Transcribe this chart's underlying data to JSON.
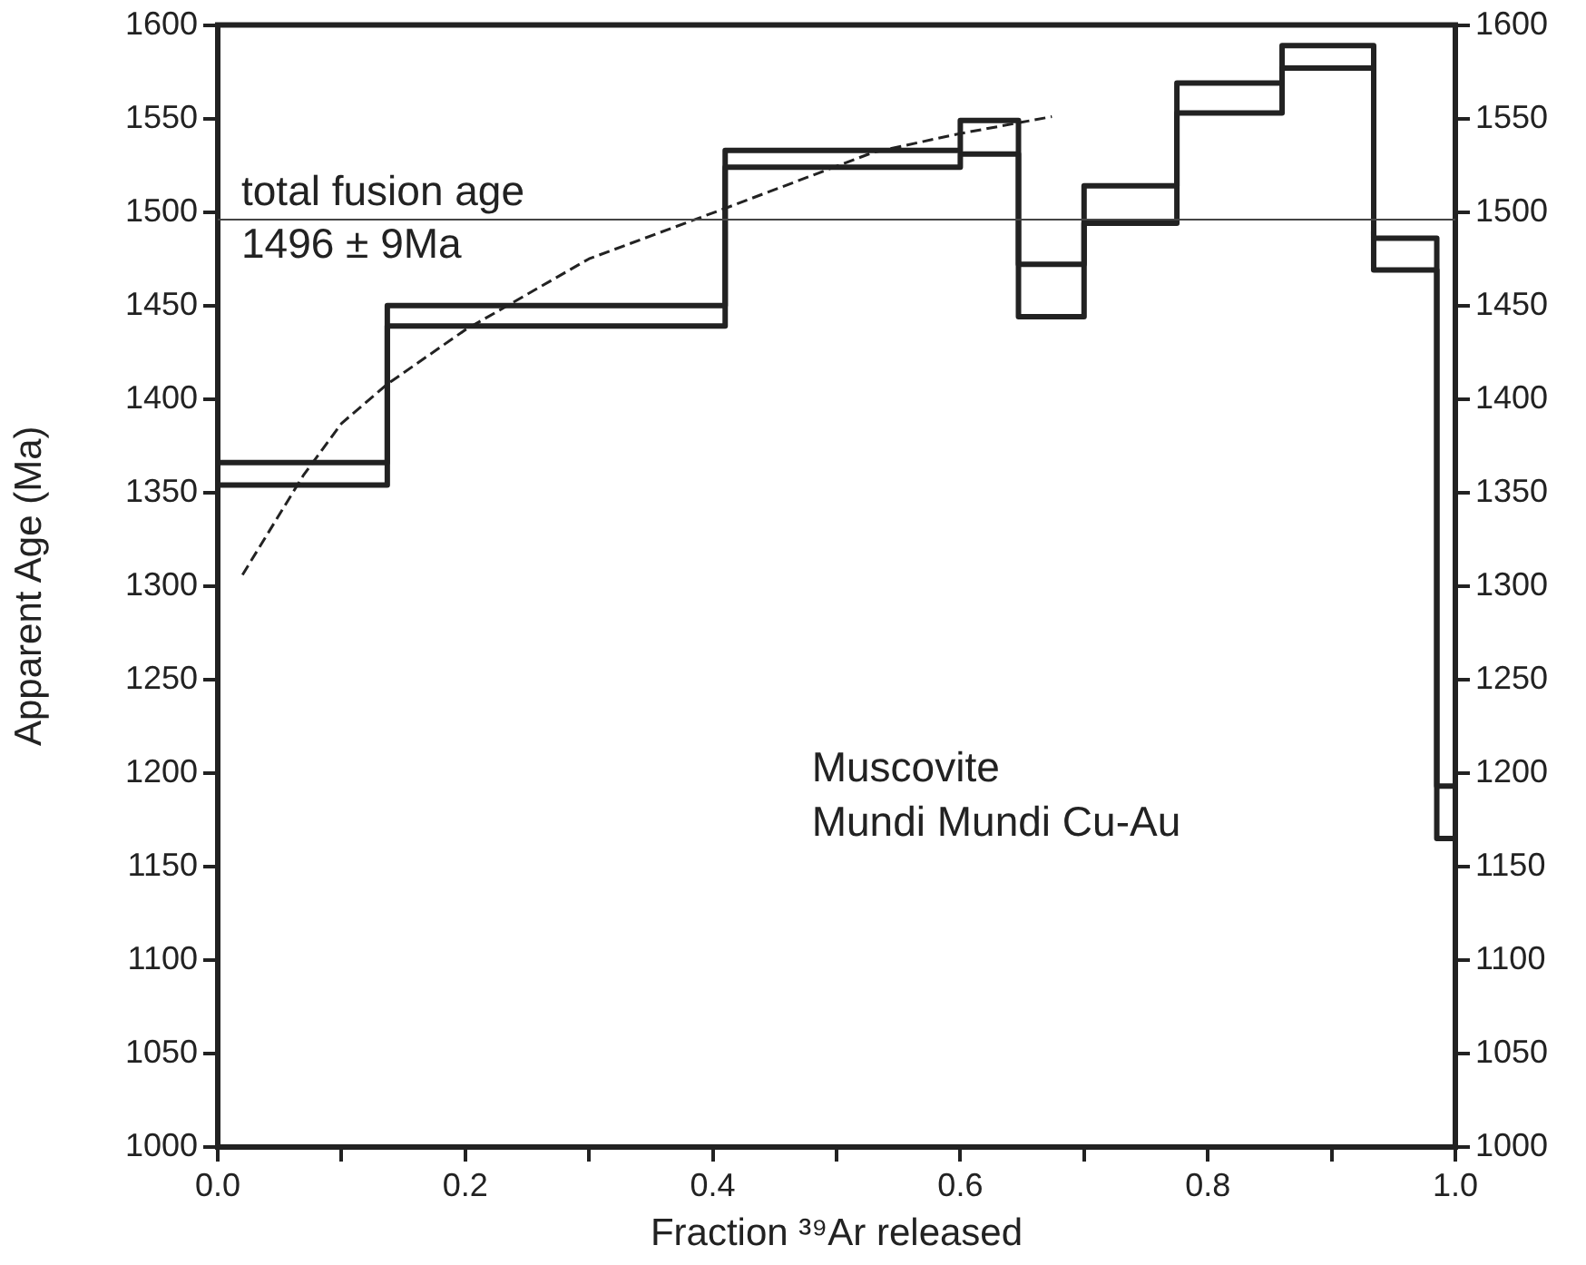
{
  "chart_data": {
    "type": "step",
    "xlabel": "Fraction ³⁹Ar released",
    "ylabel": "Apparent Age (Ma)",
    "x": [
      0,
      0.137,
      0.41,
      0.6,
      0.647,
      0.7,
      0.775,
      0.86,
      0.934,
      0.985,
      1.0
    ],
    "series": [
      {
        "color": "#222222",
        "values": [
          1366,
          1450,
          1533,
          1549,
          1472,
          1514,
          1569,
          1589,
          1486,
          1193,
          1193
        ]
      },
      {
        "color": "#222222",
        "values": [
          1354,
          1439,
          1524,
          1531,
          1444,
          1494,
          1553,
          1577,
          1469,
          1165,
          1165
        ]
      },
      {
        "type": "line",
        "line_style": "dashed",
        "color": "#222222",
        "x": [
          0.02,
          0.069,
          0.1,
          0.137,
          0.2,
          0.3,
          0.41,
          0.53,
          0.6,
          0.674
        ],
        "values": [
          1306,
          1359,
          1387,
          1408,
          1437,
          1475,
          1502,
          1532,
          1542,
          1551
        ]
      }
    ],
    "xlim": [
      0,
      1
    ],
    "xticks": [
      {
        "value": 0,
        "label": "0.0"
      },
      {
        "value": 0.1,
        "label": null
      },
      {
        "value": 0.2,
        "label": "0.2"
      },
      {
        "value": 0.3,
        "label": null
      },
      {
        "value": 0.4,
        "label": "0.4"
      },
      {
        "value": 0.5,
        "label": null
      },
      {
        "value": 0.6,
        "label": "0.6"
      },
      {
        "value": 0.7,
        "label": null
      },
      {
        "value": 0.8,
        "label": "0.8"
      },
      {
        "value": 0.9,
        "label": null
      },
      {
        "value": 1.0,
        "label": "1.0"
      }
    ],
    "ylim": [
      1000,
      1600
    ],
    "yticks": [
      1000,
      1050,
      1100,
      1150,
      1200,
      1250,
      1300,
      1350,
      1400,
      1450,
      1500,
      1550,
      1600
    ],
    "y2lim": [
      1000,
      1600
    ],
    "y2ticks": [
      1000,
      1050,
      1100,
      1150,
      1200,
      1250,
      1300,
      1350,
      1400,
      1450,
      1500,
      1550,
      1600
    ],
    "ref_lines": [
      {
        "axis": "y",
        "value": 1496,
        "label": "total fusion age\n1496 ± 9Ma",
        "color": "#444444"
      }
    ],
    "annotations": [
      "Muscovite",
      "Mundi Mundi Cu-Au"
    ],
    "legend": false,
    "marker": "none",
    "grid": false
  }
}
